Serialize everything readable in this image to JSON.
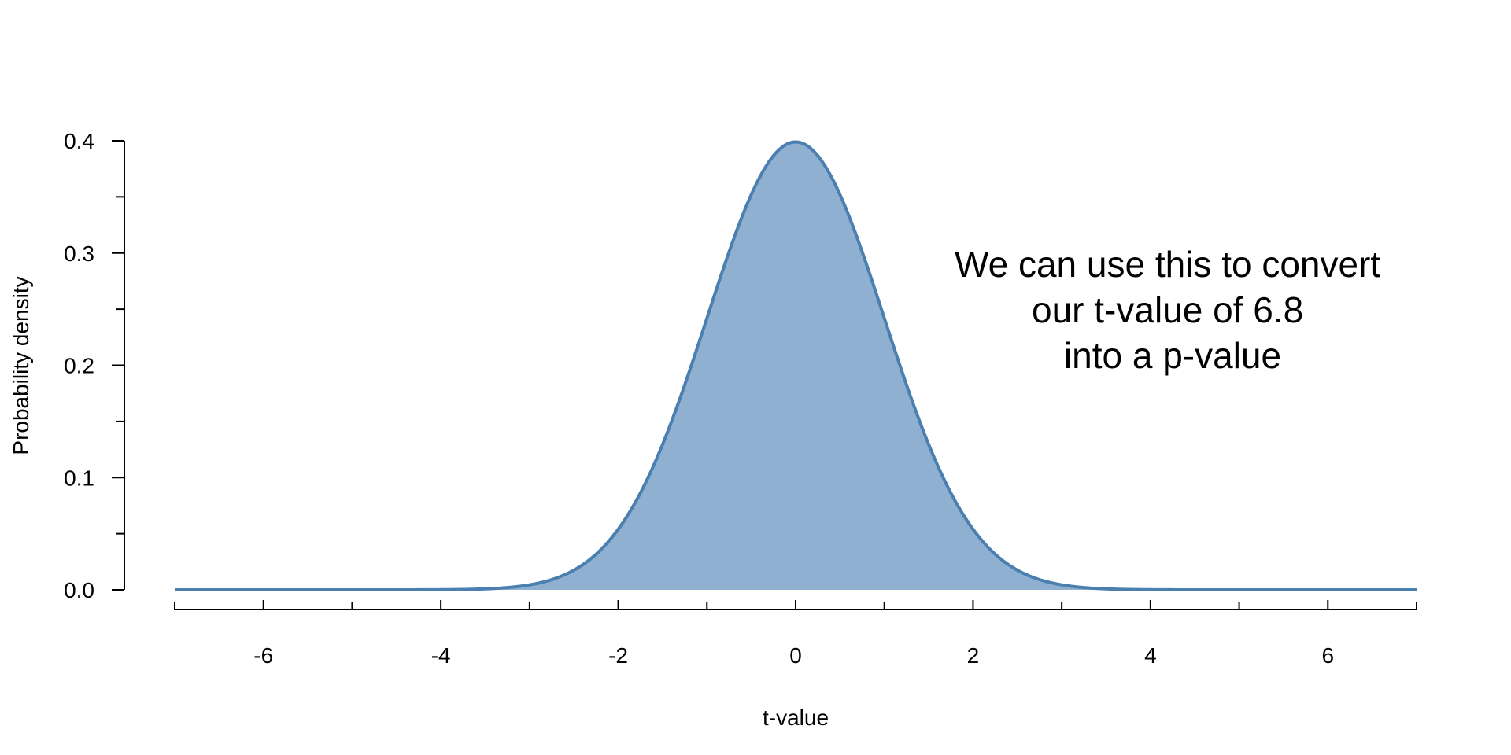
{
  "chart_data": {
    "type": "area",
    "distribution": "Student's t density",
    "x_range": [
      -7,
      7
    ],
    "ylim": [
      0,
      0.4
    ],
    "x_ticks_major": [
      -6,
      -4,
      -2,
      0,
      2,
      4,
      6
    ],
    "x_tick_labels": [
      "-6",
      "-4",
      "-2",
      "0",
      "2",
      "4",
      "6"
    ],
    "x_ticks_minor": [
      -7,
      -5,
      -3,
      -1,
      1,
      3,
      5,
      7
    ],
    "y_ticks_major": [
      0.0,
      0.1,
      0.2,
      0.3,
      0.4
    ],
    "y_tick_labels": [
      "0.0",
      "0.1",
      "0.2",
      "0.3",
      "0.4"
    ],
    "y_ticks_minor": [
      0.05,
      0.15,
      0.25,
      0.35
    ],
    "xlabel": "t-value",
    "ylabel": "Probability density",
    "title": "",
    "grid": false,
    "annotation": {
      "lines": [
        "We can use this to convert",
        "our t-value of 6.8",
        "into a p-value"
      ]
    },
    "colors": {
      "fill": "#8fb0d0",
      "line": "#4a7fb0",
      "axis": "#000000"
    }
  }
}
